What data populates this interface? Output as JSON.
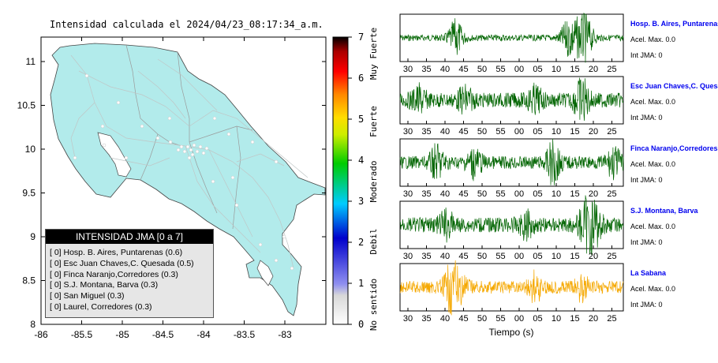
{
  "title": "Intensidad calculada el 2024/04/23_08:17:34_a.m.",
  "map": {
    "x_ticks": [
      "-86",
      "-85.5",
      "-85",
      "-84.5",
      "-84",
      "-83.5",
      "-83"
    ],
    "y_ticks": [
      "11",
      "10.5",
      "10",
      "9.5",
      "9",
      "8.5",
      "8"
    ],
    "land_color": "#b2ebeb",
    "border_color": "#888888"
  },
  "legend": {
    "title": "INTENSIDAD JMA [0 a 7]",
    "stations": [
      {
        "bracket": "[ 0]",
        "name": "Hosp. B. Aires, Puntarenas (0.6)"
      },
      {
        "bracket": "[ 0]",
        "name": "Esc Juan Chaves,C. Quesada (0.5)"
      },
      {
        "bracket": "[ 0]",
        "name": "Finca Naranjo,Corredores (0.3)"
      },
      {
        "bracket": "[ 0]",
        "name": "S.J. Montana, Barva (0.3)"
      },
      {
        "bracket": "[ 0]",
        "name": "San Miguel (0.3)"
      },
      {
        "bracket": "[ 0]",
        "name": "Laurel, Corredores (0.3)"
      }
    ]
  },
  "colorbar": {
    "ticks": [
      "0",
      "1",
      "2",
      "3",
      "4",
      "5",
      "6",
      "7"
    ],
    "labels": [
      "No sentido",
      "Debil",
      "Moderado",
      "Fuerte",
      "Muy Fuerte"
    ]
  },
  "waveforms": {
    "xlabel": "Tiempo (s)",
    "time_ticks": [
      "30",
      "35",
      "40",
      "45",
      "50",
      "55",
      "00",
      "05",
      "10",
      "15",
      "20",
      "25"
    ],
    "panels": [
      {
        "station": "Hosp. B. Aires, Puntarenas",
        "acel": "Acel. Max. 0.0",
        "jma": "Int JMA: 0",
        "color": "#006400",
        "station_color": "#0000ee",
        "spikes": [
          [
            12,
            0.8
          ],
          [
            40,
            0.9
          ],
          [
            38,
            0.6
          ],
          [
            36,
            0.7
          ]
        ],
        "base": 0.15
      },
      {
        "station": "Esc Juan Chaves,C. Quesada",
        "acel": "Acel. Max. 0.0",
        "jma": "Int JMA: 0",
        "color": "#006400",
        "station_color": "#0000ee",
        "spikes": [
          [
            4,
            0.5
          ],
          [
            14,
            0.5
          ],
          [
            29,
            0.5
          ],
          [
            39,
            0.9
          ]
        ],
        "base": 0.35
      },
      {
        "station": "Finca Naranjo,Corredores",
        "acel": "Acel. Max. 0.0",
        "jma": "Int JMA: 0",
        "color": "#006400",
        "station_color": "#0000ee",
        "spikes": [
          [
            8,
            0.7
          ],
          [
            16,
            0.6
          ],
          [
            33,
            0.9
          ],
          [
            46,
            0.6
          ]
        ],
        "base": 0.3
      },
      {
        "station": "S.J. Montana, Barva",
        "acel": "Acel. Max. 0.0",
        "jma": "Int JMA: 0",
        "color": "#006400",
        "station_color": "#0000ee",
        "spikes": [
          [
            10,
            0.5
          ],
          [
            27,
            0.5
          ],
          [
            40,
            1.0
          ],
          [
            42,
            0.8
          ]
        ],
        "base": 0.35
      },
      {
        "station": "La Sabana",
        "acel": "Acel. Max. 0.0",
        "jma": "Int JMA: 0",
        "color": "#f5a800",
        "station_color": "#0000ee",
        "spikes": [
          [
            11,
            1.0
          ],
          [
            13,
            0.5
          ],
          [
            29,
            0.6
          ],
          [
            39,
            0.5
          ]
        ],
        "base": 0.3
      }
    ]
  }
}
